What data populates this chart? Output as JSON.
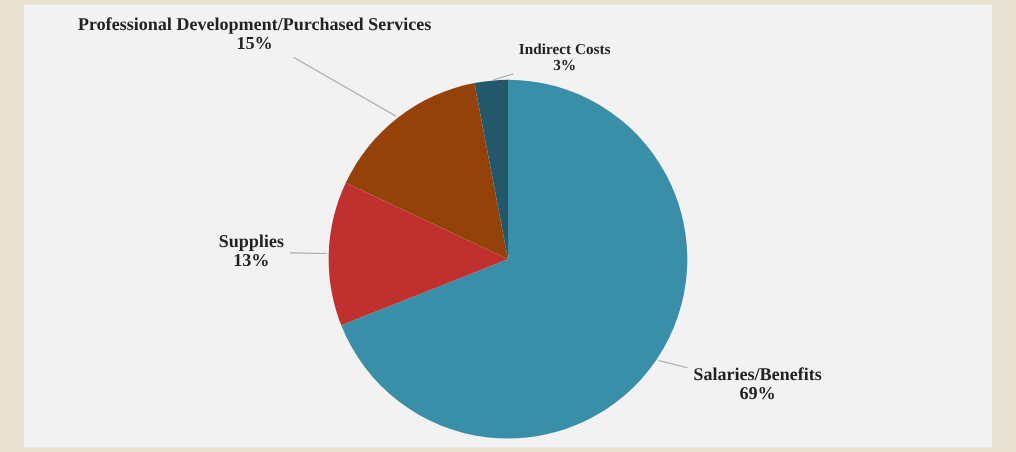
{
  "chart_data": {
    "type": "pie",
    "categories": [
      "Salaries/Benefits",
      "Supplies",
      "Professional Development/Purchased Services",
      "Indirect Costs"
    ],
    "values": [
      69,
      13,
      15,
      3
    ],
    "value_labels": [
      "69%",
      "13%",
      "15%",
      "3%"
    ],
    "colors": [
      "#3a8fa8",
      "#c0302e",
      "#95420a",
      "#23576a"
    ],
    "legend": false
  }
}
